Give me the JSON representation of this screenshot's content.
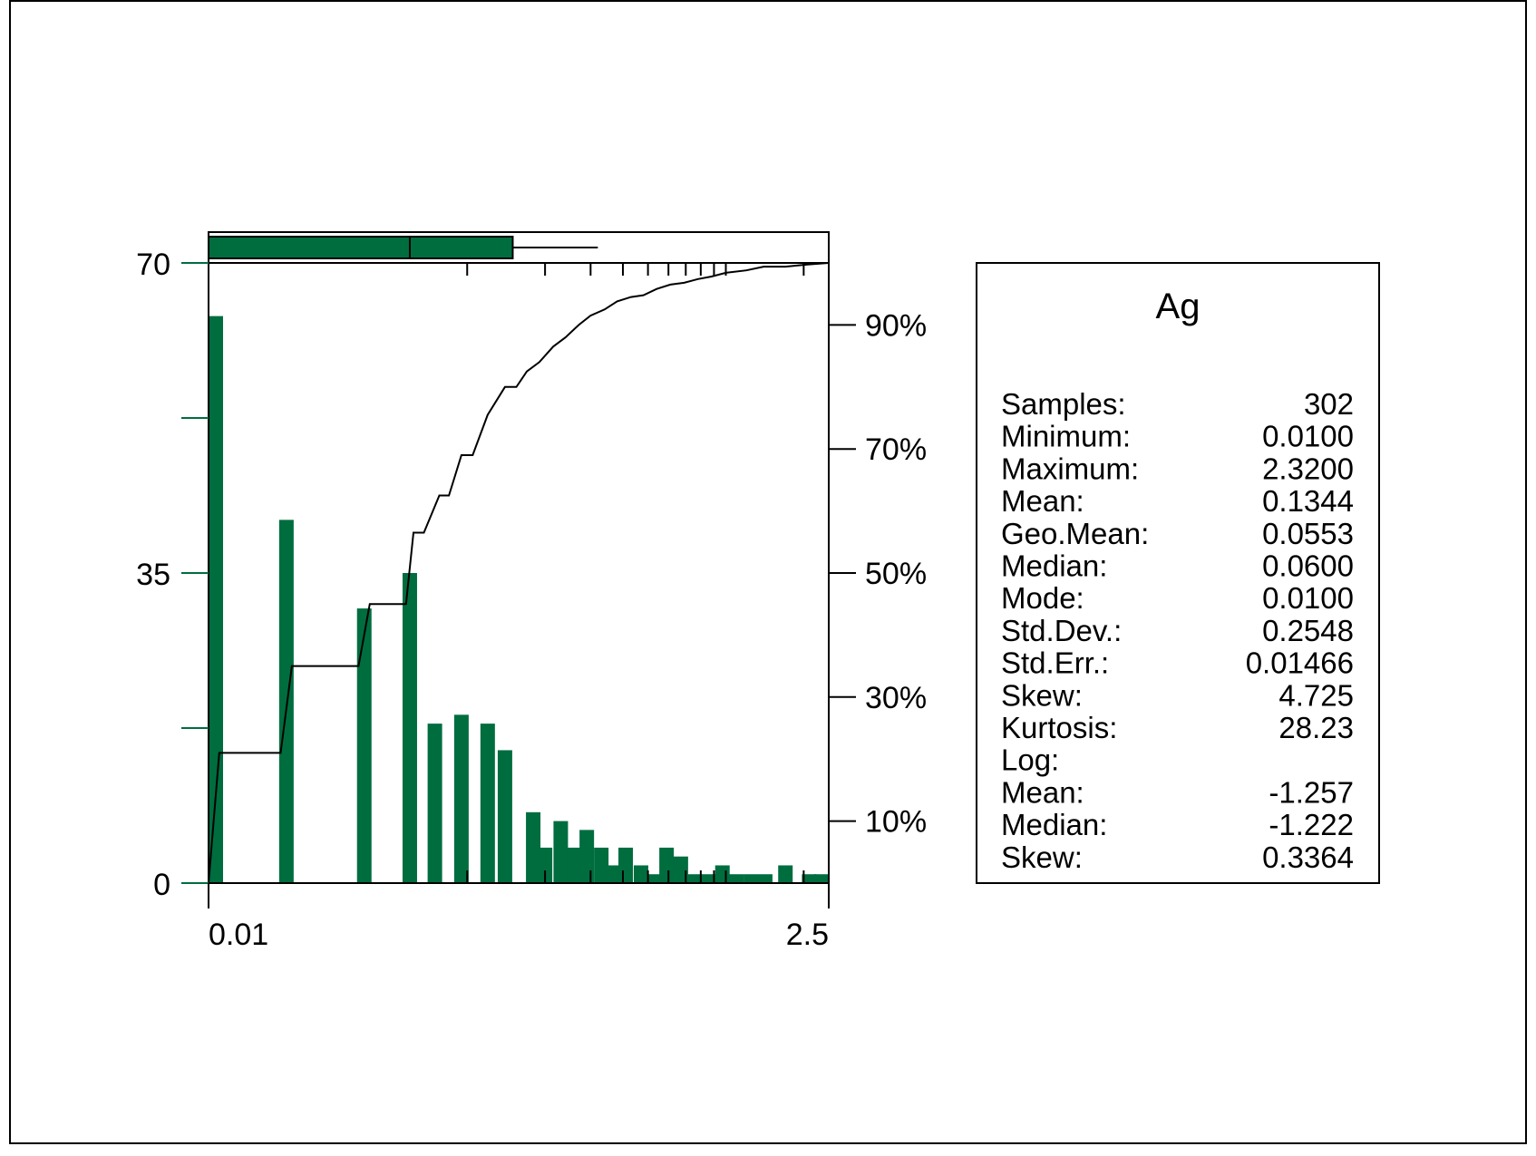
{
  "colors": {
    "bar": "#006d3f",
    "line": "#000000",
    "background": "#ffffff"
  },
  "chart_data": {
    "type": "bar",
    "x_axis": {
      "scale": "log",
      "range": [
        0.01,
        2.5
      ],
      "tick_labels": [
        "0.01",
        "2.5"
      ]
    },
    "y_axis": {
      "range": [
        0,
        70
      ],
      "tick_labels": [
        "0",
        "35",
        "70"
      ]
    },
    "cumulative_axis": {
      "tick_labels": [
        "10%",
        "30%",
        "50%",
        "70%",
        "90%"
      ]
    },
    "histogram": [
      {
        "value": 0.01,
        "count": 64
      },
      {
        "value": 0.02,
        "count": 41
      },
      {
        "value": 0.04,
        "count": 31
      },
      {
        "value": 0.06,
        "count": 35
      },
      {
        "value": 0.075,
        "count": 18
      },
      {
        "value": 0.095,
        "count": 19
      },
      {
        "value": 0.12,
        "count": 18
      },
      {
        "value": 0.14,
        "count": 15
      },
      {
        "value": 0.18,
        "count": 8
      },
      {
        "value": 0.2,
        "count": 4
      },
      {
        "value": 0.23,
        "count": 7
      },
      {
        "value": 0.26,
        "count": 4
      },
      {
        "value": 0.29,
        "count": 6
      },
      {
        "value": 0.33,
        "count": 4
      },
      {
        "value": 0.37,
        "count": 2
      },
      {
        "value": 0.41,
        "count": 4
      },
      {
        "value": 0.47,
        "count": 2
      },
      {
        "value": 0.53,
        "count": 1
      },
      {
        "value": 0.59,
        "count": 4
      },
      {
        "value": 0.67,
        "count": 3
      },
      {
        "value": 0.76,
        "count": 1
      },
      {
        "value": 0.86,
        "count": 1
      },
      {
        "value": 0.97,
        "count": 2
      },
      {
        "value": 1.1,
        "count": 1
      },
      {
        "value": 1.25,
        "count": 1
      },
      {
        "value": 1.42,
        "count": 1
      },
      {
        "value": 1.7,
        "count": 2
      },
      {
        "value": 2.1,
        "count": 1
      },
      {
        "value": 2.45,
        "count": 1
      }
    ],
    "cumulative_percent": [
      {
        "x": 0.01,
        "y": 0
      },
      {
        "x": 0.011,
        "y": 21
      },
      {
        "x": 0.019,
        "y": 21
      },
      {
        "x": 0.021,
        "y": 35
      },
      {
        "x": 0.038,
        "y": 35
      },
      {
        "x": 0.042,
        "y": 45
      },
      {
        "x": 0.058,
        "y": 45
      },
      {
        "x": 0.062,
        "y": 56.5
      },
      {
        "x": 0.068,
        "y": 56.5
      },
      {
        "x": 0.078,
        "y": 62.5
      },
      {
        "x": 0.085,
        "y": 62.5
      },
      {
        "x": 0.095,
        "y": 69
      },
      {
        "x": 0.105,
        "y": 69
      },
      {
        "x": 0.12,
        "y": 75.5
      },
      {
        "x": 0.14,
        "y": 80
      },
      {
        "x": 0.155,
        "y": 80
      },
      {
        "x": 0.17,
        "y": 82.5
      },
      {
        "x": 0.19,
        "y": 84
      },
      {
        "x": 0.215,
        "y": 86.5
      },
      {
        "x": 0.24,
        "y": 88
      },
      {
        "x": 0.27,
        "y": 90
      },
      {
        "x": 0.3,
        "y": 91.5
      },
      {
        "x": 0.34,
        "y": 92.5
      },
      {
        "x": 0.38,
        "y": 93.8
      },
      {
        "x": 0.43,
        "y": 94.5
      },
      {
        "x": 0.48,
        "y": 94.8
      },
      {
        "x": 0.54,
        "y": 95.8
      },
      {
        "x": 0.61,
        "y": 96.5
      },
      {
        "x": 0.69,
        "y": 96.8
      },
      {
        "x": 0.78,
        "y": 97.4
      },
      {
        "x": 0.88,
        "y": 97.8
      },
      {
        "x": 1.0,
        "y": 98.4
      },
      {
        "x": 1.2,
        "y": 98.8
      },
      {
        "x": 1.4,
        "y": 99.4
      },
      {
        "x": 1.7,
        "y": 99.4
      },
      {
        "x": 2.0,
        "y": 99.7
      },
      {
        "x": 2.5,
        "y": 100
      }
    ],
    "boxplot": {
      "q1": 0.01,
      "median": 0.06,
      "q3": 0.15,
      "whisker_high": 0.32
    },
    "rug_ticks": [
      0.1,
      0.2,
      0.3,
      0.4,
      0.5,
      0.6,
      0.7,
      0.8,
      0.9,
      1.0,
      2.0
    ],
    "stats": {
      "title": "Ag",
      "rows": [
        {
          "label": "Samples:",
          "value": "302"
        },
        {
          "label": "Minimum:",
          "value": "0.0100"
        },
        {
          "label": "Maximum:",
          "value": "2.3200"
        },
        {
          "label": "Mean:",
          "value": "0.1344"
        },
        {
          "label": "Geo.Mean:",
          "value": "0.0553"
        },
        {
          "label": "Median:",
          "value": "0.0600"
        },
        {
          "label": "Mode:",
          "value": "0.0100"
        },
        {
          "label": "Std.Dev.:",
          "value": "0.2548"
        },
        {
          "label": "Std.Err.:",
          "value": "0.01466"
        },
        {
          "label": "Skew:",
          "value": "4.725"
        },
        {
          "label": "Kurtosis:",
          "value": "28.23"
        },
        {
          "label": "Log:",
          "value": ""
        },
        {
          "label": "Mean:",
          "value": "-1.257"
        },
        {
          "label": "Median:",
          "value": "-1.222"
        },
        {
          "label": "Skew:",
          "value": "0.3364"
        }
      ]
    }
  }
}
